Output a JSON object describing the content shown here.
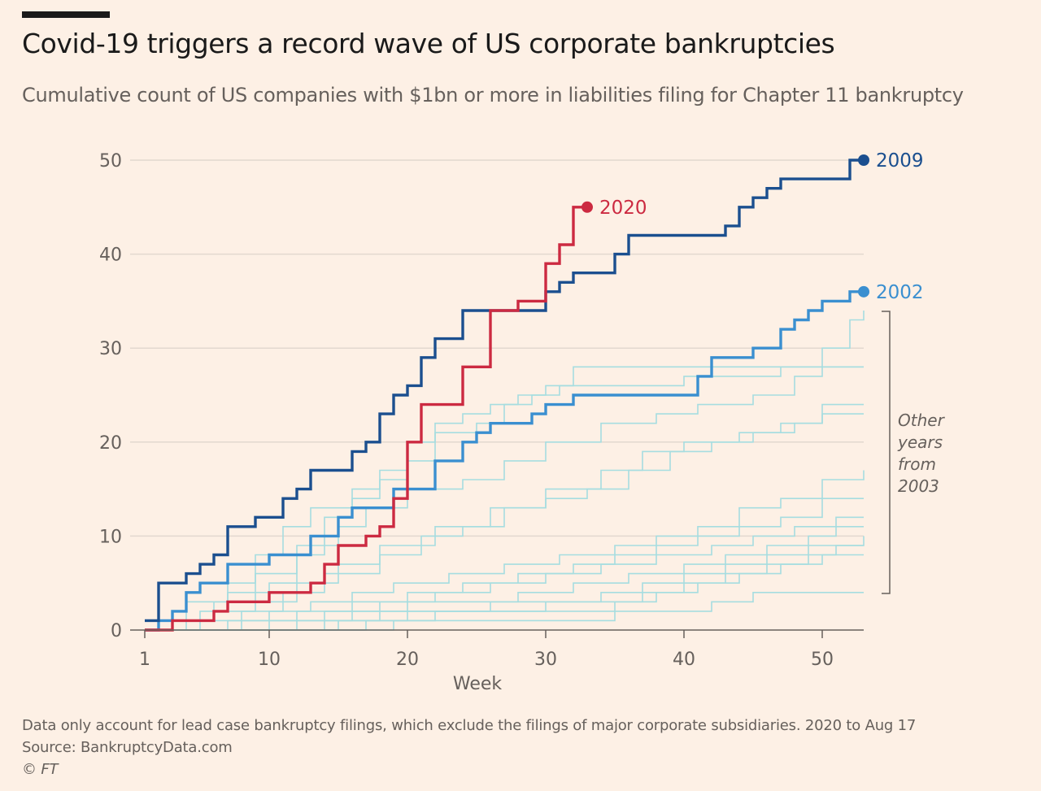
{
  "title": "Covid-19 triggers a record wave of US corporate bankruptcies",
  "subtitle": "Cumulative count of US companies with $1bn or more in liabilities filing for Chapter 11 bankruptcy",
  "footnotes": {
    "note": "Data only account for lead case bankruptcy filings, which exclude the filings of major corporate subsidiaries. 2020 to Aug 17",
    "source": "Source: BankruptcyData.com",
    "credit": "© FT"
  },
  "colors": {
    "background": "#fdf0e5",
    "y2020": "#cc2a41",
    "y2009": "#1b4f8f",
    "y2002": "#3a8fd0",
    "other": "#a6dde0",
    "grid": "#e2d8cf",
    "axis": "#66605c"
  },
  "chart_data": {
    "type": "line",
    "step": true,
    "title": "Covid-19 triggers a record wave of US corporate bankruptcies",
    "xlabel": "Week",
    "ylabel": "",
    "xlim": [
      1,
      53
    ],
    "ylim": [
      0,
      50
    ],
    "x_ticks": [
      1,
      10,
      20,
      30,
      40,
      50
    ],
    "y_ticks": [
      0,
      10,
      20,
      30,
      40,
      50
    ],
    "grid": true,
    "bracket_label": [
      "Other",
      "years",
      "from",
      "2003"
    ],
    "highlight_series": [
      {
        "name": "2009",
        "color": "#1b4f8f",
        "end_marker": true,
        "points": [
          [
            1,
            1
          ],
          [
            2,
            5
          ],
          [
            4,
            6
          ],
          [
            5,
            7
          ],
          [
            6,
            8
          ],
          [
            7,
            11
          ],
          [
            9,
            12
          ],
          [
            11,
            14
          ],
          [
            12,
            15
          ],
          [
            13,
            17
          ],
          [
            16,
            19
          ],
          [
            17,
            20
          ],
          [
            18,
            23
          ],
          [
            19,
            25
          ],
          [
            20,
            26
          ],
          [
            21,
            29
          ],
          [
            22,
            31
          ],
          [
            24,
            34
          ],
          [
            30,
            36
          ],
          [
            31,
            37
          ],
          [
            32,
            38
          ],
          [
            35,
            40
          ],
          [
            36,
            42
          ],
          [
            43,
            43
          ],
          [
            44,
            45
          ],
          [
            45,
            46
          ],
          [
            46,
            47
          ],
          [
            47,
            48
          ],
          [
            52,
            50
          ],
          [
            53,
            50
          ]
        ]
      },
      {
        "name": "2020",
        "color": "#cc2a41",
        "end_marker": true,
        "points": [
          [
            1,
            0
          ],
          [
            3,
            1
          ],
          [
            6,
            2
          ],
          [
            7,
            3
          ],
          [
            10,
            4
          ],
          [
            13,
            5
          ],
          [
            14,
            7
          ],
          [
            15,
            9
          ],
          [
            17,
            10
          ],
          [
            18,
            11
          ],
          [
            19,
            14
          ],
          [
            20,
            20
          ],
          [
            21,
            24
          ],
          [
            24,
            28
          ],
          [
            26,
            34
          ],
          [
            28,
            35
          ],
          [
            30,
            39
          ],
          [
            31,
            41
          ],
          [
            32,
            45
          ],
          [
            33,
            45
          ]
        ]
      },
      {
        "name": "2002",
        "color": "#3a8fd0",
        "end_marker": true,
        "points": [
          [
            1,
            0
          ],
          [
            2,
            1
          ],
          [
            3,
            2
          ],
          [
            4,
            4
          ],
          [
            5,
            5
          ],
          [
            7,
            7
          ],
          [
            10,
            8
          ],
          [
            13,
            10
          ],
          [
            15,
            12
          ],
          [
            16,
            13
          ],
          [
            19,
            15
          ],
          [
            22,
            18
          ],
          [
            24,
            20
          ],
          [
            25,
            21
          ],
          [
            26,
            22
          ],
          [
            29,
            23
          ],
          [
            30,
            24
          ],
          [
            32,
            25
          ],
          [
            41,
            27
          ],
          [
            42,
            29
          ],
          [
            45,
            30
          ],
          [
            47,
            32
          ],
          [
            48,
            33
          ],
          [
            49,
            34
          ],
          [
            50,
            35
          ],
          [
            52,
            36
          ],
          [
            53,
            36
          ]
        ]
      }
    ],
    "other_series": [
      {
        "points": [
          [
            1,
            0
          ],
          [
            2,
            1
          ],
          [
            4,
            3
          ],
          [
            7,
            5
          ],
          [
            9,
            8
          ],
          [
            11,
            11
          ],
          [
            13,
            13
          ],
          [
            16,
            15
          ],
          [
            18,
            17
          ],
          [
            20,
            20
          ],
          [
            22,
            22
          ],
          [
            24,
            23
          ],
          [
            26,
            24
          ],
          [
            28,
            25
          ],
          [
            30,
            26
          ],
          [
            32,
            28
          ],
          [
            53,
            28
          ]
        ]
      },
      {
        "points": [
          [
            1,
            0
          ],
          [
            3,
            1
          ],
          [
            5,
            2
          ],
          [
            7,
            4
          ],
          [
            10,
            5
          ],
          [
            12,
            8
          ],
          [
            14,
            12
          ],
          [
            16,
            14
          ],
          [
            18,
            16
          ],
          [
            20,
            18
          ],
          [
            22,
            21
          ],
          [
            25,
            22
          ],
          [
            27,
            24
          ],
          [
            29,
            25
          ],
          [
            31,
            26
          ],
          [
            40,
            27
          ],
          [
            47,
            28
          ],
          [
            53,
            28
          ]
        ]
      },
      {
        "points": [
          [
            1,
            0
          ],
          [
            4,
            1
          ],
          [
            6,
            3
          ],
          [
            9,
            6
          ],
          [
            12,
            9
          ],
          [
            15,
            11
          ],
          [
            17,
            13
          ],
          [
            20,
            15
          ],
          [
            24,
            16
          ],
          [
            27,
            18
          ],
          [
            30,
            20
          ],
          [
            34,
            22
          ],
          [
            38,
            23
          ],
          [
            41,
            24
          ],
          [
            45,
            25
          ],
          [
            48,
            27
          ],
          [
            50,
            30
          ],
          [
            52,
            33
          ],
          [
            53,
            34
          ]
        ]
      },
      {
        "points": [
          [
            1,
            0
          ],
          [
            5,
            1
          ],
          [
            8,
            2
          ],
          [
            11,
            4
          ],
          [
            14,
            6
          ],
          [
            18,
            8
          ],
          [
            21,
            10
          ],
          [
            24,
            11
          ],
          [
            27,
            13
          ],
          [
            30,
            14
          ],
          [
            33,
            15
          ],
          [
            36,
            17
          ],
          [
            39,
            19
          ],
          [
            42,
            20
          ],
          [
            45,
            21
          ],
          [
            48,
            22
          ],
          [
            50,
            23
          ],
          [
            53,
            23
          ]
        ]
      },
      {
        "points": [
          [
            1,
            0
          ],
          [
            3,
            1
          ],
          [
            6,
            2
          ],
          [
            9,
            3
          ],
          [
            12,
            5
          ],
          [
            15,
            7
          ],
          [
            18,
            9
          ],
          [
            22,
            11
          ],
          [
            26,
            13
          ],
          [
            30,
            15
          ],
          [
            34,
            17
          ],
          [
            37,
            19
          ],
          [
            40,
            20
          ],
          [
            44,
            21
          ],
          [
            47,
            22
          ],
          [
            50,
            24
          ],
          [
            53,
            24
          ]
        ]
      },
      {
        "points": [
          [
            1,
            0
          ],
          [
            7,
            1
          ],
          [
            10,
            2
          ],
          [
            13,
            3
          ],
          [
            16,
            4
          ],
          [
            19,
            5
          ],
          [
            23,
            6
          ],
          [
            27,
            7
          ],
          [
            31,
            8
          ],
          [
            35,
            9
          ],
          [
            38,
            10
          ],
          [
            41,
            11
          ],
          [
            44,
            13
          ],
          [
            47,
            14
          ],
          [
            50,
            16
          ],
          [
            53,
            17
          ]
        ]
      },
      {
        "points": [
          [
            1,
            0
          ],
          [
            8,
            1
          ],
          [
            12,
            2
          ],
          [
            16,
            3
          ],
          [
            20,
            4
          ],
          [
            24,
            5
          ],
          [
            28,
            6
          ],
          [
            32,
            7
          ],
          [
            35,
            8
          ],
          [
            38,
            9
          ],
          [
            41,
            10
          ],
          [
            44,
            11
          ],
          [
            47,
            12
          ],
          [
            50,
            14
          ],
          [
            53,
            14
          ]
        ]
      },
      {
        "points": [
          [
            1,
            0
          ],
          [
            10,
            1
          ],
          [
            14,
            2
          ],
          [
            18,
            3
          ],
          [
            22,
            4
          ],
          [
            26,
            5
          ],
          [
            30,
            6
          ],
          [
            34,
            7
          ],
          [
            38,
            8
          ],
          [
            42,
            9
          ],
          [
            45,
            10
          ],
          [
            48,
            11
          ],
          [
            51,
            12
          ],
          [
            53,
            12
          ]
        ]
      },
      {
        "points": [
          [
            1,
            0
          ],
          [
            12,
            1
          ],
          [
            16,
            2
          ],
          [
            20,
            3
          ],
          [
            24,
            3
          ],
          [
            28,
            4
          ],
          [
            32,
            5
          ],
          [
            36,
            6
          ],
          [
            40,
            7
          ],
          [
            43,
            8
          ],
          [
            46,
            9
          ],
          [
            49,
            10
          ],
          [
            51,
            11
          ],
          [
            53,
            11
          ]
        ]
      },
      {
        "points": [
          [
            1,
            0
          ],
          [
            14,
            1
          ],
          [
            18,
            2
          ],
          [
            22,
            2
          ],
          [
            26,
            3
          ],
          [
            30,
            3
          ],
          [
            34,
            4
          ],
          [
            37,
            5
          ],
          [
            40,
            6
          ],
          [
            43,
            7
          ],
          [
            46,
            8
          ],
          [
            49,
            9
          ],
          [
            53,
            10
          ]
        ]
      },
      {
        "points": [
          [
            1,
            0
          ],
          [
            15,
            1
          ],
          [
            20,
            2
          ],
          [
            25,
            2
          ],
          [
            30,
            3
          ],
          [
            34,
            3
          ],
          [
            37,
            4
          ],
          [
            40,
            5
          ],
          [
            43,
            6
          ],
          [
            46,
            7
          ],
          [
            49,
            8
          ],
          [
            51,
            9
          ],
          [
            53,
            9
          ]
        ]
      },
      {
        "points": [
          [
            1,
            0
          ],
          [
            17,
            1
          ],
          [
            22,
            2
          ],
          [
            27,
            2
          ],
          [
            31,
            2
          ],
          [
            35,
            3
          ],
          [
            38,
            4
          ],
          [
            41,
            5
          ],
          [
            44,
            6
          ],
          [
            47,
            7
          ],
          [
            50,
            8
          ],
          [
            53,
            8
          ]
        ]
      },
      {
        "points": [
          [
            1,
            0
          ],
          [
            19,
            1
          ],
          [
            23,
            1
          ],
          [
            27,
            1
          ],
          [
            31,
            1
          ],
          [
            35,
            2
          ],
          [
            39,
            2
          ],
          [
            42,
            3
          ],
          [
            45,
            4
          ],
          [
            53,
            4
          ]
        ]
      }
    ]
  }
}
